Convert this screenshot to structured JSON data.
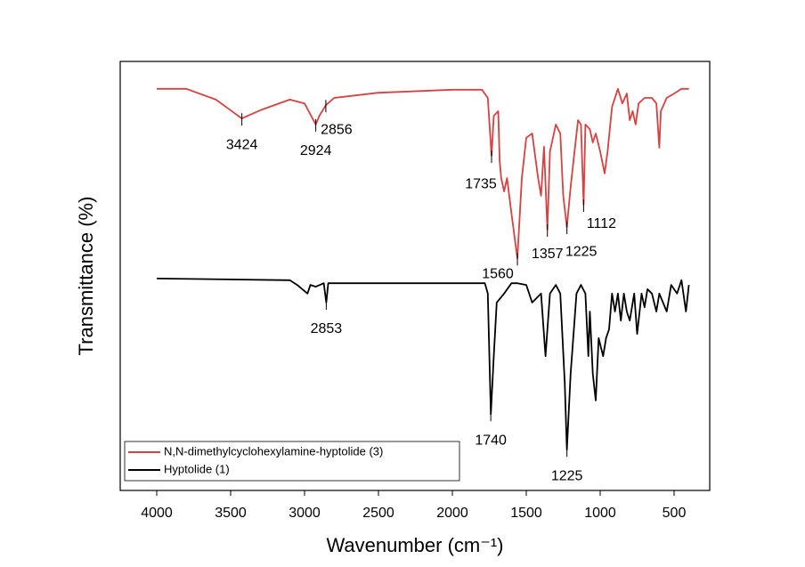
{
  "chart_data": {
    "type": "line",
    "xlabel": "Wavenumber (cm⁻¹)",
    "ylabel": "Transmittance (%)",
    "xlim": [
      4247,
      259
    ],
    "ylim": [
      0,
      100
    ],
    "xticks": [
      4000,
      3500,
      3000,
      2500,
      2000,
      1500,
      1000,
      500
    ],
    "legend": "lower left",
    "series": [
      {
        "name": "N,N-dimethylcyclohexylamine-hyptolide (3)",
        "color": "#d9403f",
        "x": [
          4000,
          3800,
          3600,
          3424,
          3300,
          3100,
          3000,
          2924,
          2900,
          2856,
          2800,
          2500,
          2000,
          1800,
          1760,
          1735,
          1720,
          1690,
          1680,
          1670,
          1650,
          1630,
          1600,
          1560,
          1530,
          1500,
          1460,
          1420,
          1400,
          1380,
          1357,
          1340,
          1300,
          1270,
          1250,
          1225,
          1200,
          1170,
          1150,
          1130,
          1112,
          1100,
          1070,
          1050,
          1030,
          1000,
          970,
          950,
          920,
          880,
          850,
          820,
          800,
          780,
          760,
          740,
          700,
          650,
          620,
          600,
          590,
          550,
          500,
          450,
          400
        ],
        "values": [
          93.6,
          93.6,
          91.1,
          86.7,
          88.6,
          91.1,
          90.2,
          85.3,
          87.3,
          89.8,
          91.5,
          92.7,
          93.4,
          93.4,
          91.5,
          78.0,
          87.3,
          88.4,
          76.9,
          72.8,
          69.7,
          72.8,
          64.5,
          54.1,
          72.8,
          82.2,
          83.2,
          72.8,
          68.7,
          80.1,
          60.8,
          79.0,
          85.3,
          83.2,
          68.7,
          61.4,
          70.7,
          80.1,
          86.3,
          85.3,
          66.6,
          85.3,
          84.2,
          81.1,
          83.2,
          79.0,
          73.9,
          79.0,
          89.4,
          93.6,
          90.2,
          92.5,
          86.3,
          88.4,
          85.3,
          90.2,
          91.5,
          91.5,
          90.2,
          79.9,
          88.4,
          91.5,
          92.5,
          93.6,
          93.6
        ]
      },
      {
        "name": "Hyptolide (1)",
        "color": "#000000",
        "x": [
          4000,
          3100,
          3050,
          2980,
          2960,
          2924,
          2870,
          2853,
          2840,
          2500,
          2000,
          1780,
          1760,
          1740,
          1720,
          1700,
          1650,
          1600,
          1560,
          1500,
          1460,
          1400,
          1370,
          1340,
          1300,
          1270,
          1240,
          1225,
          1200,
          1160,
          1130,
          1100,
          1080,
          1070,
          1050,
          1030,
          1010,
          980,
          960,
          940,
          920,
          900,
          880,
          860,
          840,
          820,
          800,
          770,
          750,
          720,
          700,
          680,
          650,
          620,
          600,
          550,
          520,
          480,
          450,
          420,
          400
        ],
        "values": [
          49.4,
          49.0,
          47.9,
          45.9,
          47.9,
          47.5,
          48.3,
          43.8,
          48.3,
          48.3,
          48.3,
          48.3,
          45.9,
          17.8,
          31.3,
          43.8,
          45.9,
          48.3,
          48.3,
          47.9,
          43.8,
          45.9,
          31.3,
          45.9,
          47.9,
          45.9,
          25.1,
          9.5,
          27.2,
          45.9,
          47.9,
          45.9,
          31.3,
          41.7,
          27.2,
          21.0,
          35.5,
          31.3,
          35.5,
          37.6,
          45.9,
          41.7,
          45.9,
          39.6,
          45.9,
          41.7,
          39.6,
          45.9,
          36.5,
          45.9,
          42.7,
          46.9,
          45.9,
          41.7,
          45.9,
          41.7,
          47.9,
          45.9,
          49.0,
          41.7,
          47.9
        ]
      }
    ],
    "annotations": [
      {
        "series": 0,
        "x": 3424,
        "text": "3424"
      },
      {
        "series": 0,
        "x": 2924,
        "text": "2924"
      },
      {
        "series": 0,
        "x": 2856,
        "text": "2856"
      },
      {
        "series": 0,
        "x": 1735,
        "text": "1735"
      },
      {
        "series": 0,
        "x": 1560,
        "text": "1560"
      },
      {
        "series": 0,
        "x": 1357,
        "text": "1357"
      },
      {
        "series": 0,
        "x": 1225,
        "text": "1225"
      },
      {
        "series": 0,
        "x": 1112,
        "text": "1112"
      },
      {
        "series": 1,
        "x": 2853,
        "text": "2853"
      },
      {
        "series": 1,
        "x": 1740,
        "text": "1740"
      },
      {
        "series": 1,
        "x": 1225,
        "text": "1225"
      }
    ]
  }
}
